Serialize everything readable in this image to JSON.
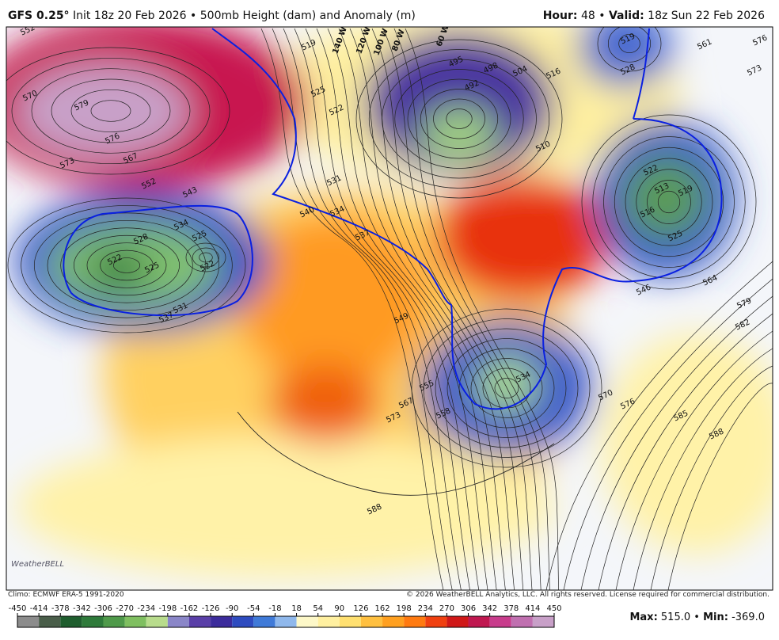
{
  "header": {
    "model": "GFS 0.25°",
    "init": "Init 18z 20 Feb 2026",
    "separator": "•",
    "product": "500mb Height (dam) and Anomaly (m)",
    "hour_label": "Hour:",
    "hour": "48",
    "valid_label": "Valid:",
    "valid": "18z Sun 22 Feb 2026"
  },
  "longitude_labels": [
    "140 W",
    "120 W",
    "100 W",
    "80 W",
    "60 W"
  ],
  "contour_labels": [
    552,
    570,
    579,
    576,
    573,
    567,
    552,
    543,
    534,
    528,
    522,
    525,
    525,
    522,
    531,
    537,
    519,
    525,
    522,
    531,
    534,
    540,
    537,
    495,
    498,
    504,
    492,
    516,
    510,
    519,
    528,
    561,
    576,
    573,
    522,
    513,
    519,
    516,
    525,
    546,
    564,
    579,
    582,
    549,
    555,
    558,
    567,
    573,
    570,
    576,
    585,
    588,
    588,
    534
  ],
  "logo": "WeatherBELL",
  "climo": "Climo: ECMWF ERA-5 1991-2020",
  "copyright": "© 2026 WeatherBELL Analytics, LLC. All rights reserved. License required for commercial distribution.",
  "colorbar": {
    "ticks": [
      -450,
      -414,
      -378,
      -342,
      -306,
      -270,
      -234,
      -198,
      -162,
      -126,
      -90,
      -54,
      -18,
      18,
      54,
      90,
      126,
      162,
      198,
      234,
      270,
      306,
      342,
      378,
      414,
      450
    ],
    "colors": [
      "#8c8c8c",
      "#4a5e4a",
      "#1f5e2e",
      "#2e7a3a",
      "#4f9a4a",
      "#7fbf60",
      "#b8dc8c",
      "#8a86c8",
      "#5a3fa8",
      "#3c2c9c",
      "#2e4cc0",
      "#3f7ad8",
      "#8fb8ec",
      "#fdf8c8",
      "#fff0a0",
      "#ffe070",
      "#ffc040",
      "#ffa020",
      "#ff7a10",
      "#f04010",
      "#d01818",
      "#c01850",
      "#c83c8c",
      "#c070b0",
      "#c8a0c8"
    ]
  },
  "stats": {
    "max_label": "Max",
    "max": "515.0",
    "separator": "•",
    "min_label": "Min",
    "min": "-369.0"
  }
}
